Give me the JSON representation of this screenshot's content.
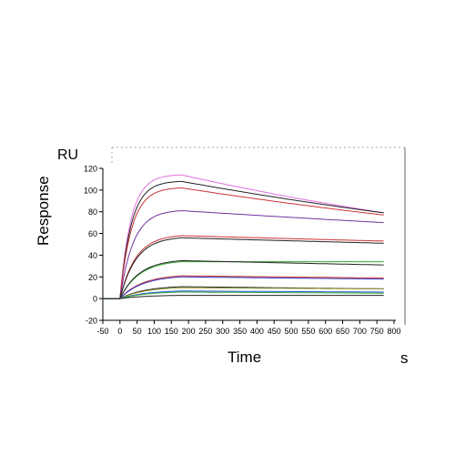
{
  "chart_data": {
    "type": "line",
    "title": "",
    "ylabel": "Response",
    "y_unit": "RU",
    "xlabel": "Time",
    "x_unit": "s",
    "xlim": [
      -50,
      800
    ],
    "ylim": [
      -20,
      120
    ],
    "x_ticks": [
      -50,
      0,
      50,
      100,
      150,
      200,
      250,
      300,
      350,
      400,
      450,
      500,
      550,
      600,
      650,
      700,
      750,
      800
    ],
    "y_ticks": [
      -20,
      0,
      20,
      40,
      60,
      80,
      100,
      120
    ],
    "grid": false,
    "legend": "none",
    "association_end": 180,
    "data_end": 770,
    "series": [
      {
        "color": "#e070e0",
        "plateau": 114,
        "end_value": 79
      },
      {
        "color": "#222222",
        "plateau": 108,
        "end_value": 79
      },
      {
        "color": "#cc3333",
        "plateau": 102,
        "end_value": 77
      },
      {
        "color": "#7030a0",
        "plateau": 81,
        "end_value": 70
      },
      {
        "color": "#cc3333",
        "plateau": 58,
        "end_value": 53
      },
      {
        "color": "#222222",
        "plateau": 56,
        "end_value": 51
      },
      {
        "color": "#33aa33",
        "plateau": 34,
        "end_value": 34
      },
      {
        "color": "#222222",
        "plateau": 35,
        "end_value": 31
      },
      {
        "color": "#cc3333",
        "plateau": 21,
        "end_value": 19
      },
      {
        "color": "#3030c0",
        "plateau": 20,
        "end_value": 18
      },
      {
        "color": "#222222",
        "plateau": 11,
        "end_value": 9
      },
      {
        "color": "#999933",
        "plateau": 10,
        "end_value": 9
      },
      {
        "color": "#2050d0",
        "plateau": 7,
        "end_value": 6
      },
      {
        "color": "#33aa33",
        "plateau": 6,
        "end_value": 5
      },
      {
        "color": "#222222",
        "plateau": 3,
        "end_value": 3
      }
    ]
  }
}
